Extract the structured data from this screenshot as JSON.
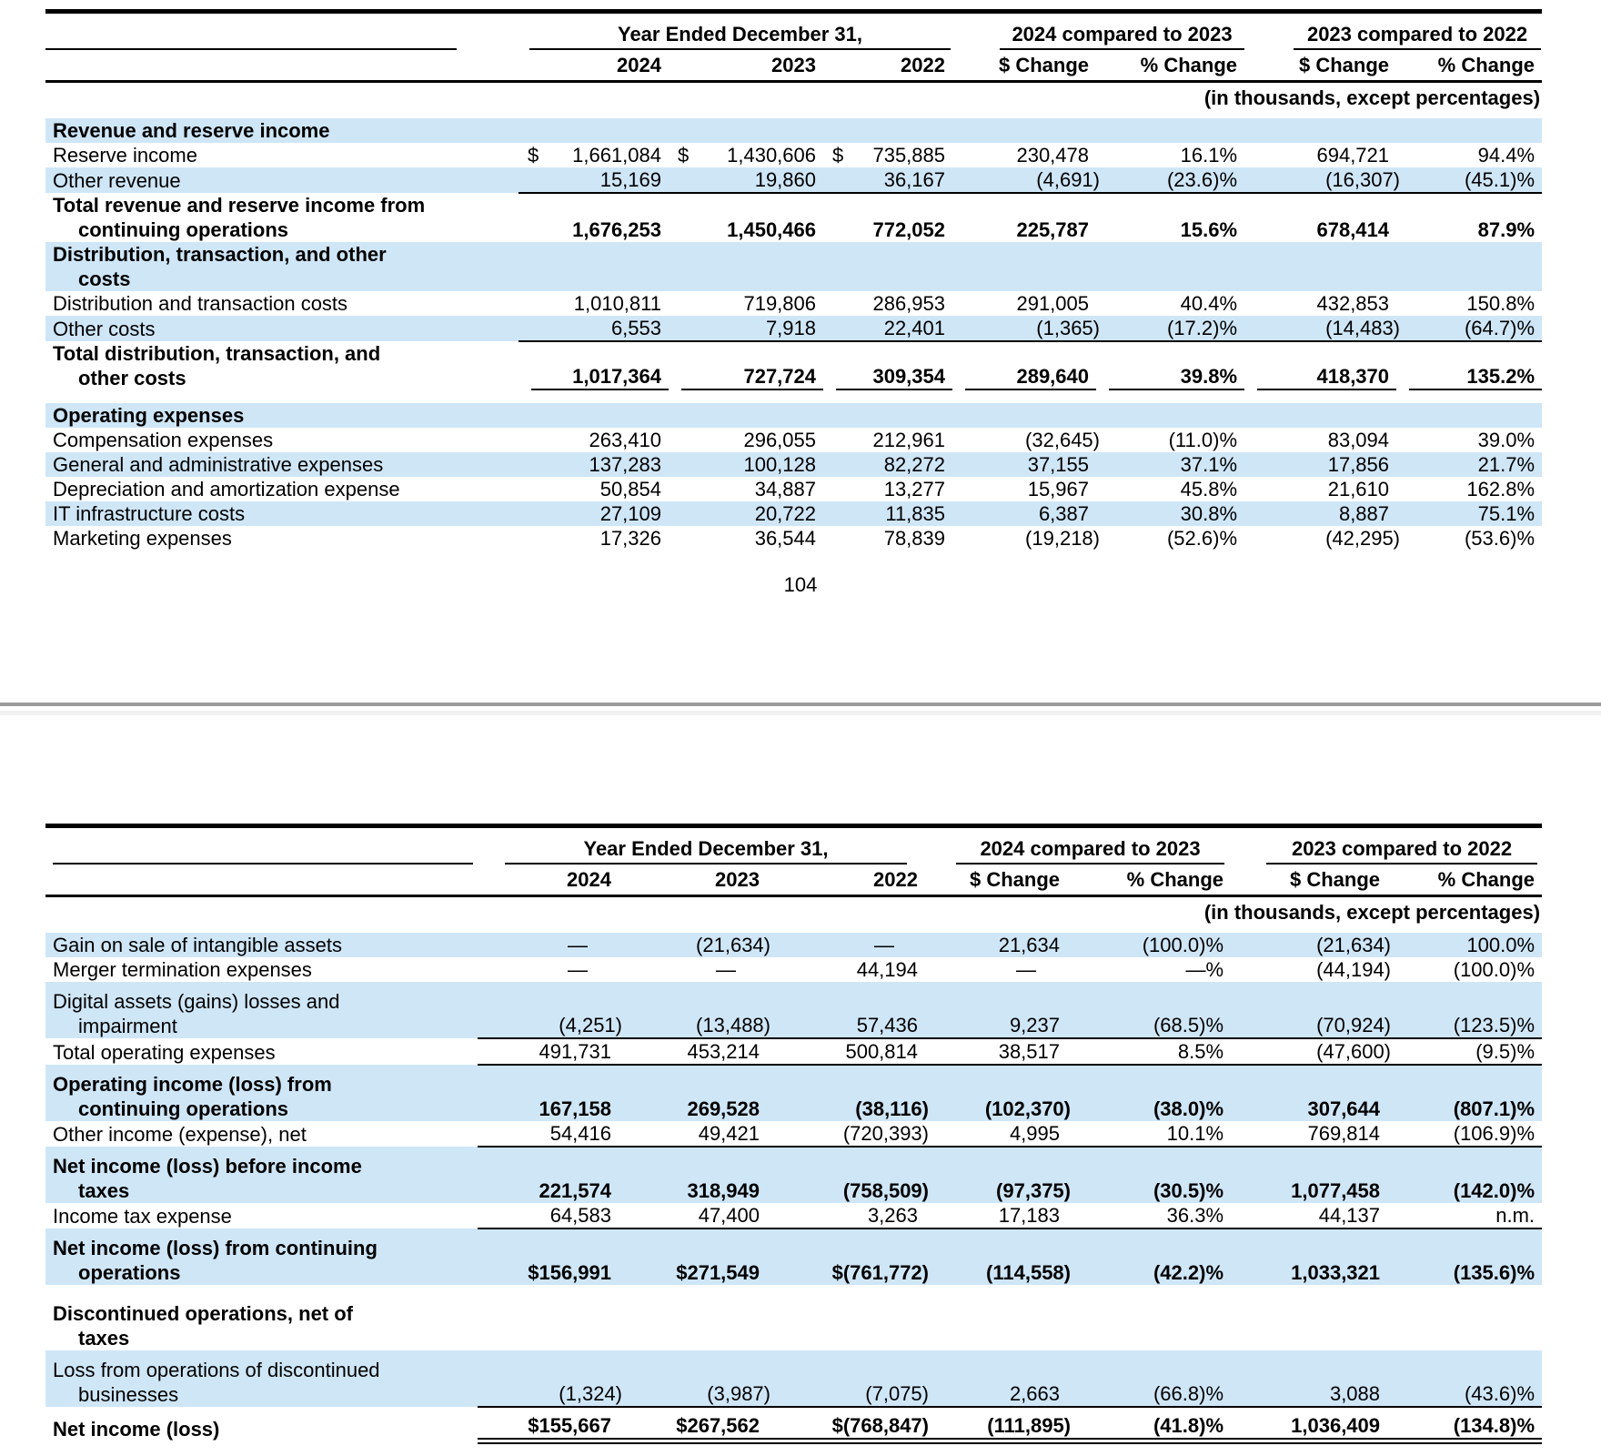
{
  "colors": {
    "row_highlight": "#cfe6f7",
    "rule": "#000000",
    "divider_gray": "#9a9a9a",
    "divider_band": "#f1f1f1"
  },
  "page1": {
    "page_number": "104",
    "table": {
      "group_headers": [
        "Year Ended December 31,",
        "2024 compared to 2023",
        "2023 compared to 2022"
      ],
      "column_headers": [
        "2024",
        "2023",
        "2022",
        "$ Change",
        "% Change",
        "$ Change",
        "% Change"
      ],
      "units_note": "(in thousands, except percentages)",
      "rows": [
        {
          "label": "Revenue and reserve income",
          "section": true,
          "bold": true,
          "shaded": true,
          "underline": "none",
          "cells": []
        },
        {
          "label": "Reserve income",
          "bold": false,
          "shaded": false,
          "underline": "none",
          "cells": [
            "$ 1,661,084",
            "$ 1,430,606",
            "$ 735,885",
            "230,478",
            "16.1%",
            "694,721",
            "94.4%"
          ]
        },
        {
          "label": "Other revenue",
          "bold": false,
          "shaded": true,
          "underline": "continuous",
          "cells": [
            "15,169",
            "19,860",
            "36,167",
            "(4,691)",
            "(23.6)%",
            "(16,307)",
            "(45.1)%"
          ]
        },
        {
          "label": "Total revenue and reserve income from\ncontinuing operations",
          "bold": true,
          "shaded": false,
          "underline": "none",
          "cells": [
            "1,676,253",
            "1,450,466",
            "772,052",
            "225,787",
            "15.6%",
            "678,414",
            "87.9%"
          ]
        },
        {
          "label": "Distribution, transaction, and other\ncosts",
          "section": true,
          "bold": true,
          "shaded": true,
          "underline": "none",
          "cells": []
        },
        {
          "label": "Distribution and transaction costs",
          "bold": false,
          "shaded": false,
          "underline": "none",
          "cells": [
            "1,010,811",
            "719,806",
            "286,953",
            "291,005",
            "40.4%",
            "432,853",
            "150.8%"
          ]
        },
        {
          "label": "Other costs",
          "bold": false,
          "shaded": true,
          "underline": "continuous",
          "cells": [
            "6,553",
            "7,918",
            "22,401",
            "(1,365)",
            "(17.2)%",
            "(14,483)",
            "(64.7)%"
          ]
        },
        {
          "label": "Total distribution, transaction, and\nother costs",
          "bold": true,
          "shaded": false,
          "underline": "segments",
          "cells": [
            "1,017,364",
            "727,724",
            "309,354",
            "289,640",
            "39.8%",
            "418,370",
            "135.2%"
          ]
        },
        {
          "spacer": 14
        },
        {
          "label": "Operating expenses",
          "section": true,
          "bold": true,
          "shaded": true,
          "underline": "none",
          "cells": []
        },
        {
          "label": "Compensation expenses",
          "bold": false,
          "shaded": false,
          "underline": "none",
          "cells": [
            "263,410",
            "296,055",
            "212,961",
            "(32,645)",
            "(11.0)%",
            "83,094",
            "39.0%"
          ]
        },
        {
          "label": "General and administrative expenses",
          "bold": false,
          "shaded": true,
          "underline": "none",
          "cells": [
            "137,283",
            "100,128",
            "82,272",
            "37,155",
            "37.1%",
            "17,856",
            "21.7%"
          ]
        },
        {
          "label": "Depreciation and amortization expense",
          "bold": false,
          "shaded": false,
          "underline": "none",
          "cells": [
            "50,854",
            "34,887",
            "13,277",
            "15,967",
            "45.8%",
            "21,610",
            "162.8%"
          ]
        },
        {
          "label": "IT infrastructure costs",
          "bold": false,
          "shaded": true,
          "underline": "none",
          "cells": [
            "27,109",
            "20,722",
            "11,835",
            "6,387",
            "30.8%",
            "8,887",
            "75.1%"
          ]
        },
        {
          "label": "Marketing expenses",
          "bold": false,
          "shaded": false,
          "underline": "none",
          "cells": [
            "17,326",
            "36,544",
            "78,839",
            "(19,218)",
            "(52.6)%",
            "(42,295)",
            "(53.6)%"
          ]
        }
      ]
    }
  },
  "page2": {
    "table": {
      "group_headers": [
        "Year Ended December 31,",
        "2024 compared to 2023",
        "2023 compared to 2022"
      ],
      "column_headers": [
        "2024",
        "2023",
        "2022",
        "$ Change",
        "% Change",
        "$ Change",
        "% Change"
      ],
      "units_note": "(in thousands, except percentages)",
      "rows": [
        {
          "label": "Gain on sale of intangible assets",
          "bold": false,
          "shaded": true,
          "underline": "none",
          "cells": [
            "—",
            "(21,634)",
            "—",
            "21,634",
            "(100.0)%",
            "(21,634)",
            "100.0%"
          ]
        },
        {
          "label": "Merger termination expenses",
          "bold": false,
          "shaded": false,
          "underline": "none",
          "cells": [
            "—",
            "—",
            "44,194",
            "—",
            "—%",
            "(44,194)",
            "(100.0)%"
          ]
        },
        {
          "label": "Digital assets (gains) losses and\nimpairment",
          "bold": false,
          "shaded": true,
          "underline": "continuous",
          "cells": [
            "(4,251)",
            "(13,488)",
            "57,436",
            "9,237",
            "(68.5)%",
            "(70,924)",
            "(123.5)%"
          ]
        },
        {
          "label": "Total operating expenses",
          "bold": false,
          "shaded": false,
          "underline": "continuous",
          "cells": [
            "491,731",
            "453,214",
            "500,814",
            "38,517",
            "8.5%",
            "(47,600)",
            "(9.5)%"
          ]
        },
        {
          "label": "Operating income (loss) from\ncontinuing operations",
          "bold": true,
          "shaded": true,
          "underline": "none",
          "cells": [
            "167,158",
            "269,528",
            "(38,116)",
            "(102,370)",
            "(38.0)%",
            "307,644",
            "(807.1)%"
          ]
        },
        {
          "label": "Other income (expense), net",
          "bold": false,
          "shaded": false,
          "underline": "continuous",
          "cells": [
            "54,416",
            "49,421",
            "(720,393)",
            "4,995",
            "10.1%",
            "769,814",
            "(106.9)%"
          ]
        },
        {
          "label": "Net income (loss) before income\ntaxes",
          "bold": true,
          "shaded": true,
          "underline": "none",
          "cells": [
            "221,574",
            "318,949",
            "(758,509)",
            "(97,375)",
            "(30.5)%",
            "1,077,458",
            "(142.0)%"
          ]
        },
        {
          "label": "Income tax expense",
          "bold": false,
          "shaded": false,
          "underline": "continuous",
          "cells": [
            "64,583",
            "47,400",
            "3,263",
            "17,183",
            "36.3%",
            "44,137",
            "n.m."
          ]
        },
        {
          "label": "Net income (loss) from continuing\noperations",
          "bold": true,
          "shaded": true,
          "underline": "none",
          "cells": [
            "$156,991",
            "$271,549",
            "$(761,772)",
            "(114,558)",
            "(42.2)%",
            "1,033,321",
            "(135.6)%"
          ]
        },
        {
          "spacer": 10
        },
        {
          "label": "Discontinued operations, net of\ntaxes",
          "section": true,
          "bold": true,
          "shaded": false,
          "underline": "none",
          "cells": []
        },
        {
          "label": "Loss from operations of discontinued\nbusinesses",
          "bold": false,
          "shaded": true,
          "underline": "continuous",
          "cells": [
            "(1,324)",
            "(3,987)",
            "(7,075)",
            "2,663",
            "(66.8)%",
            "3,088",
            "(43.6)%"
          ]
        },
        {
          "label": "Net income (loss)",
          "bold": true,
          "shaded": false,
          "underline": "double",
          "cells": [
            "$155,667",
            "$267,562",
            "$(768,847)",
            "(111,895)",
            "(41.8)%",
            "1,036,409",
            "(134.8)%"
          ]
        }
      ]
    }
  }
}
